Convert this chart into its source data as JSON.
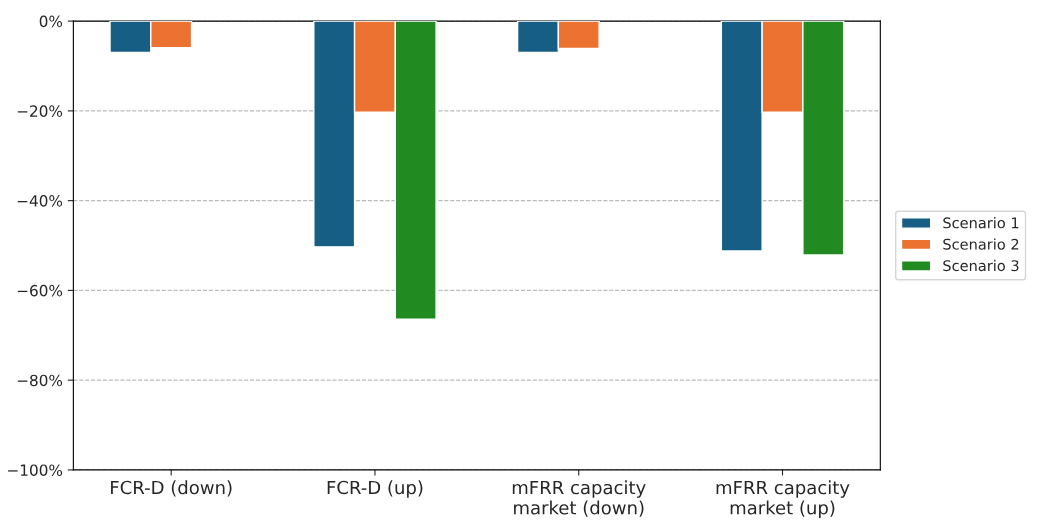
{
  "chart_data": {
    "type": "bar",
    "categories": [
      "FCR-D (down)",
      "FCR-D (up)",
      "mFRR capacity\nmarket (down)",
      "mFRR capacity\nmarket (up)"
    ],
    "series": [
      {
        "name": "Scenario 1",
        "color": "#165e83",
        "values": [
          -7.0,
          -50.3,
          -7.0,
          -51.2
        ]
      },
      {
        "name": "Scenario 2",
        "color": "#eb7231",
        "values": [
          -5.9,
          -20.3,
          -6.1,
          -20.3
        ]
      },
      {
        "name": "Scenario 3",
        "color": "#218b21",
        "values": [
          null,
          -66.4,
          null,
          -52.1
        ]
      }
    ],
    "ylim": [
      -100,
      0
    ],
    "yticks": [
      {
        "value": -100,
        "label": "−100%"
      },
      {
        "value": -80,
        "label": "−80%"
      },
      {
        "value": -60,
        "label": "−60%"
      },
      {
        "value": -40,
        "label": "−40%"
      },
      {
        "value": -20,
        "label": "−20%"
      },
      {
        "value": 0,
        "label": "0%"
      }
    ],
    "grid": "y",
    "legend": "right"
  }
}
